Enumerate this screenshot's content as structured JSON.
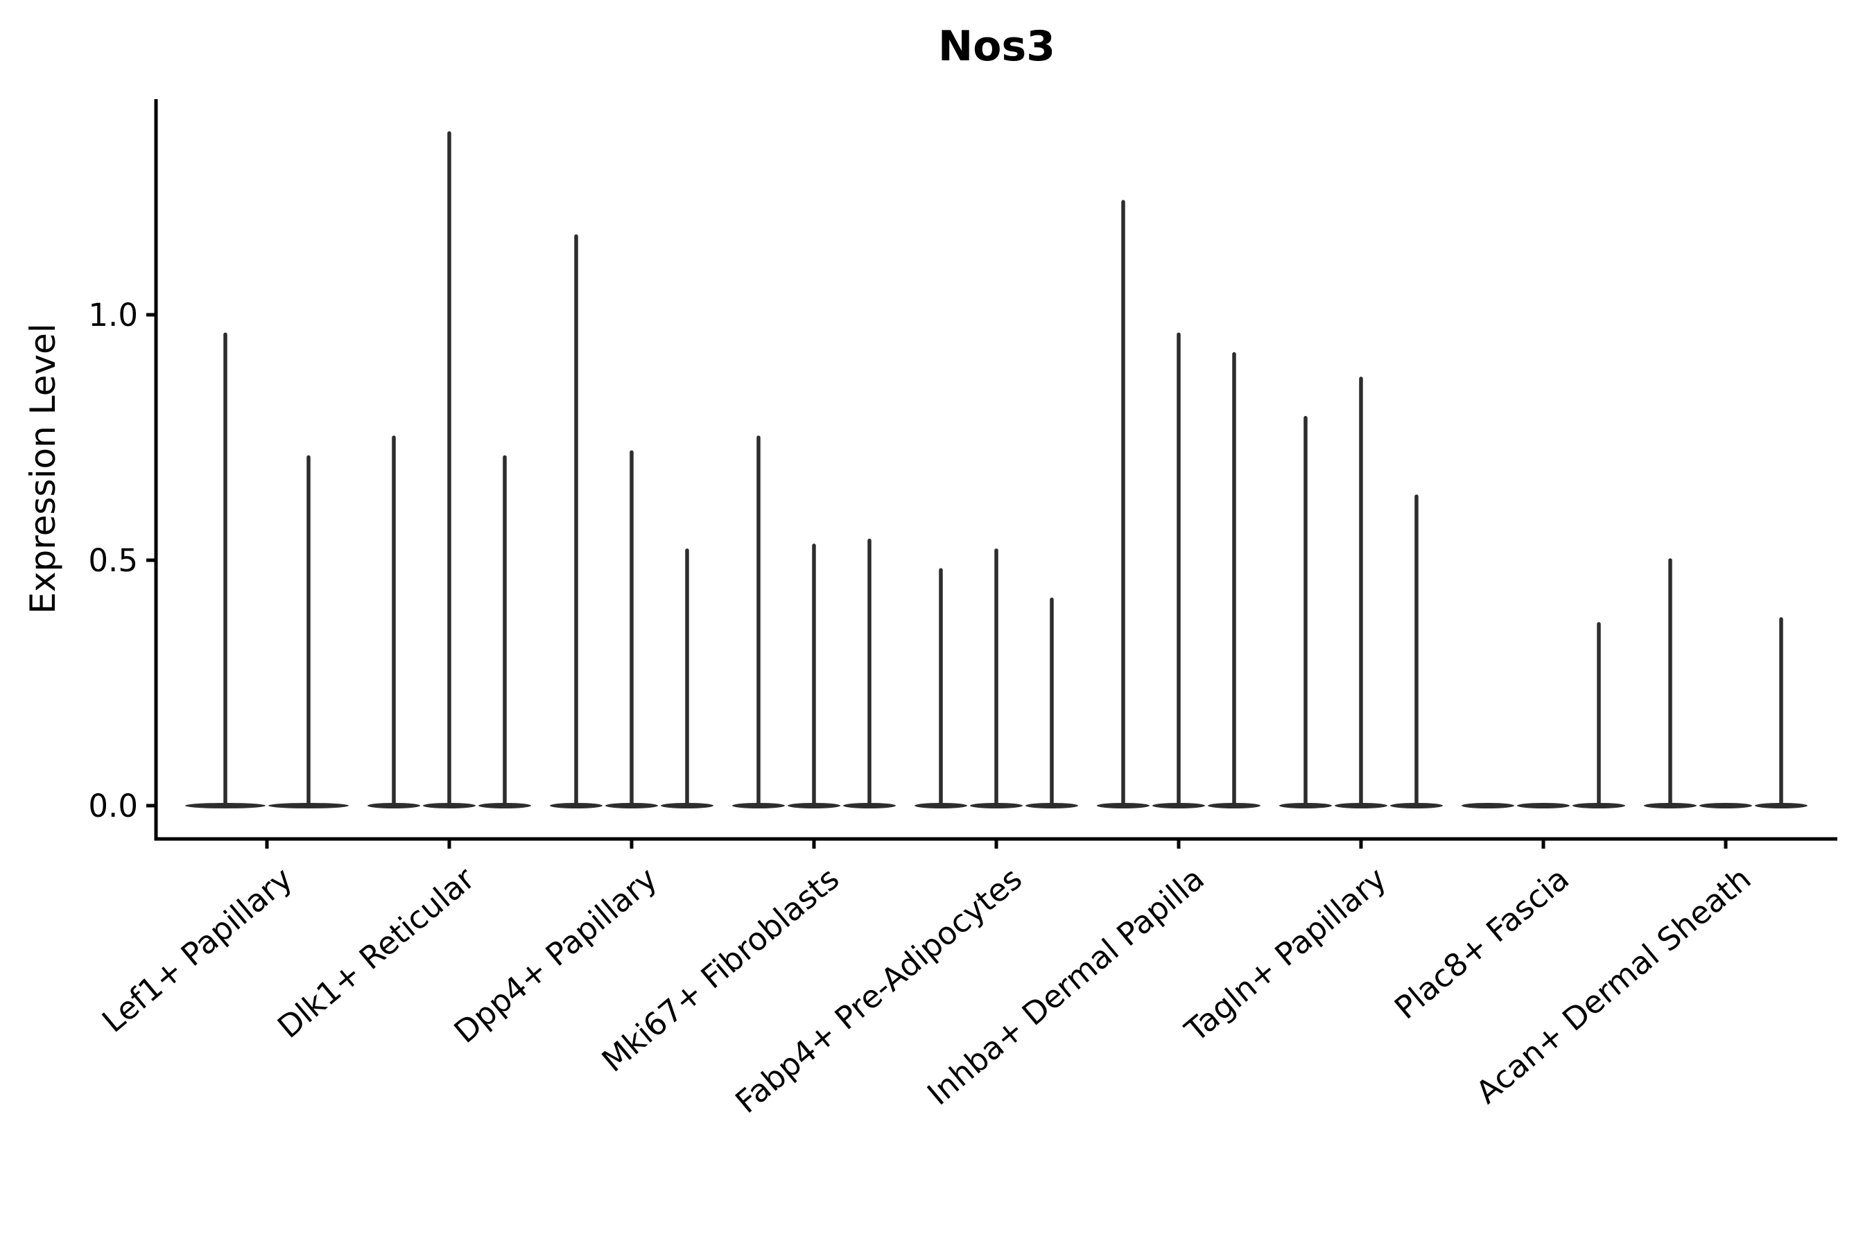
{
  "chart_data": {
    "type": "violin",
    "title": "Nos3",
    "ylabel": "Expression Level",
    "xlabel": "",
    "ytick_labels": [
      "0.0",
      "0.5",
      "1.0"
    ],
    "ytick_values": [
      0.0,
      0.5,
      1.0
    ],
    "ylim": [
      -0.07,
      1.44
    ],
    "grid": false,
    "legend_position": "none",
    "categories": [
      "Lef1+ Papillary",
      "Dlk1+ Reticular",
      "Dpp4+ Papillary",
      "Mki67+ Fibroblasts",
      "Fabp4+ Pre-Adipocytes",
      "Inhba+ Dermal Papilla",
      "Tagln+ Papillary",
      "Plac8+ Fascia",
      "Acan+ Dermal Sheath"
    ],
    "series": [
      {
        "category": "Lef1+ Papillary",
        "violin_maxima": [
          0.96,
          0.71
        ]
      },
      {
        "category": "Dlk1+ Reticular",
        "violin_maxima": [
          0.75,
          1.37,
          0.71
        ]
      },
      {
        "category": "Dpp4+ Papillary",
        "violin_maxima": [
          1.16,
          0.72,
          0.52
        ]
      },
      {
        "category": "Mki67+ Fibroblasts",
        "violin_maxima": [
          0.75,
          0.53,
          0.54
        ]
      },
      {
        "category": "Fabp4+ Pre-Adipocytes",
        "violin_maxima": [
          0.48,
          0.52,
          0.42
        ]
      },
      {
        "category": "Inhba+ Dermal Papilla",
        "violin_maxima": [
          1.23,
          0.96,
          0.92
        ]
      },
      {
        "category": "Tagln+ Papillary",
        "violin_maxima": [
          0.79,
          0.87,
          0.63
        ]
      },
      {
        "category": "Plac8+ Fascia",
        "violin_maxima": [
          0.0,
          0.0,
          0.37
        ]
      },
      {
        "category": "Acan+ Dermal Sheath",
        "violin_maxima": [
          0.5,
          0.0,
          0.38
        ]
      }
    ],
    "colors": {
      "violin": "#2d2d2d",
      "axis": "#000000",
      "text": "#000000",
      "background": "#ffffff"
    }
  }
}
